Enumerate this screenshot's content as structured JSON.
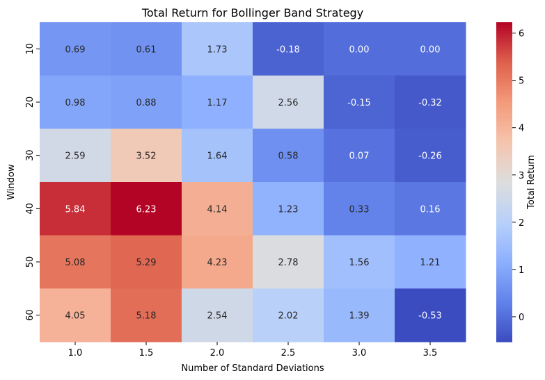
{
  "chart_data": {
    "type": "heatmap",
    "title": "Total Return for Bollinger Band Strategy",
    "xlabel": "Number of Standard Deviations",
    "ylabel": "Window",
    "x_categories": [
      "1.0",
      "1.5",
      "2.0",
      "2.5",
      "3.0",
      "3.5"
    ],
    "y_categories": [
      "10",
      "20",
      "30",
      "40",
      "50",
      "60"
    ],
    "values": [
      [
        0.69,
        0.61,
        1.73,
        -0.18,
        0.0,
        0.0
      ],
      [
        0.98,
        0.88,
        1.17,
        2.56,
        -0.15,
        -0.32
      ],
      [
        2.59,
        3.52,
        1.64,
        0.58,
        0.07,
        -0.26
      ],
      [
        5.84,
        6.23,
        4.14,
        1.23,
        0.33,
        0.16
      ],
      [
        5.08,
        5.29,
        4.23,
        2.78,
        1.56,
        1.21
      ],
      [
        4.05,
        5.18,
        2.54,
        2.02,
        1.39,
        -0.53
      ]
    ],
    "value_format": "0.00",
    "colormap": "coolwarm",
    "vmin": -0.53,
    "vmax": 6.23,
    "colorbar": {
      "label": "Total Return",
      "ticks": [
        0,
        1,
        2,
        3,
        4,
        5,
        6
      ]
    },
    "grid": false
  },
  "colors": {
    "cold": "#3b4cc0",
    "mid": "#dddddd",
    "hot": "#b40426",
    "text_dark": "#262626",
    "text_light": "#ffffff"
  }
}
